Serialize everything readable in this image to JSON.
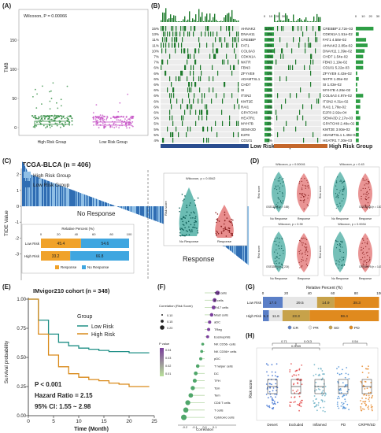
{
  "panels": {
    "A": {
      "label": "(A)",
      "annotation": "Wilcoxon, P = 0.00066",
      "ylabel": "TMB",
      "yticks": [
        "0",
        "50",
        "100",
        "150"
      ],
      "groups": [
        "High Risk Group",
        "Low Risk Group"
      ],
      "colors": {
        "high": "#2e8b3e",
        "low": "#c44fc4"
      }
    },
    "B": {
      "label": "(B)",
      "left_title": "Low Risk Group",
      "right_title": "High Risk Group",
      "left_genes": [
        {
          "pct": "15%",
          "gene": "AHNAK2"
        },
        {
          "pct": "13%",
          "gene": "DNAH11"
        },
        {
          "pct": "11%",
          "gene": "CREBBP"
        },
        {
          "pct": "11%",
          "gene": "FAT1"
        },
        {
          "pct": "10%",
          "gene": "COL6A3"
        },
        {
          "pct": "7%",
          "gene": "CDKN1A"
        },
        {
          "pct": "7%",
          "gene": "NKTR"
        },
        {
          "pct": "6%",
          "gene": "FBN3"
        },
        {
          "pct": "6%",
          "gene": "ZFYVE9"
        },
        {
          "pct": "6%",
          "gene": "ADAMTSL1"
        },
        {
          "pct": "6%",
          "gene": "CHD7"
        },
        {
          "pct": "6%",
          "gene": "SI"
        },
        {
          "pct": "6%",
          "gene": "ITSN2"
        },
        {
          "pct": "6%",
          "gene": "KMT2E"
        },
        {
          "pct": "6%",
          "gene": "RAI1"
        },
        {
          "pct": "6%",
          "gene": "GPATCH8"
        },
        {
          "pct": "5%",
          "gene": "HEATR1"
        },
        {
          "pct": "5%",
          "gene": "MYH7B"
        },
        {
          "pct": "5%",
          "gene": "SEMA3D"
        },
        {
          "pct": "5%",
          "gene": "E2F8"
        },
        {
          "pct": "4%",
          "gene": "CD101"
        }
      ],
      "right_genes": [
        {
          "pct": "12%",
          "gene": "CREBBP 2.72e-03"
        },
        {
          "pct": "2%",
          "gene": "CDKN1A 1.51e-02"
        },
        {
          "pct": "7%",
          "gene": "FAT1 4.58e-02"
        },
        {
          "pct": "8%",
          "gene": "AHNAK2 2.85e-02"
        },
        {
          "pct": "6%",
          "gene": "DNAH11 1.39e-02"
        },
        {
          "pct": "5%",
          "gene": "CHD7 1.54e-02"
        },
        {
          "pct": "5%",
          "gene": "FBN3 1.19e-02"
        },
        {
          "pct": "5%",
          "gene": "CD101 5.22e-03"
        },
        {
          "pct": "1%",
          "gene": "ZFYVE9 4.43e-02"
        },
        {
          "pct": "2%",
          "gene": "NKTR 1.05e-02"
        },
        {
          "pct": "1%",
          "gene": "SI 1.03e-02"
        },
        {
          "pct": "1%",
          "gene": "MYH7B 4.26e-02"
        },
        {
          "pct": "5%",
          "gene": "COL6A3 4.97e-02"
        },
        {
          "pct": "3%",
          "gene": "ITSN2 4.31e-02"
        },
        {
          "pct": "3%",
          "gene": "RAI1 1.78e-02"
        },
        {
          "pct": "2%",
          "gene": "E2F8 2.92e-04"
        },
        {
          "pct": "3%",
          "gene": "SEMA3D 2.17e-03"
        },
        {
          "pct": "2%",
          "gene": "GPATCH8 2.48e-02"
        },
        {
          "pct": "2%",
          "gene": "KMT2E 3.93e-02"
        },
        {
          "pct": "2%",
          "gene": "ADAMTSL1 1.49e-02"
        },
        {
          "pct": "2%",
          "gene": "HEATR1 7.30e-03"
        }
      ],
      "axis_ticks": [
        "0",
        "10",
        "20",
        "30"
      ]
    },
    "C": {
      "label": "(C)",
      "title": "TCGA-BLCA (n = 406)",
      "ylabel": "TIDE Value",
      "legend": [
        "High Risk Group",
        "Low Risk Group"
      ],
      "no_response": "No Response",
      "response": "Response",
      "inset_title": "Wilcoxon, p = 0.0042",
      "inset_ylabel": "Risk score",
      "inset_x": [
        "No Response",
        "Response"
      ],
      "bar_title": "Relative Percent (%)",
      "bar_ticks": [
        "0",
        "20",
        "40",
        "60",
        "80",
        "100"
      ],
      "bar_rows": [
        {
          "name": "Low Risk",
          "values": [
            "45.4",
            "54.6"
          ]
        },
        {
          "name": "High Risk",
          "values": [
            "33.2",
            "66.8"
          ]
        }
      ],
      "bar_legend": [
        "Response",
        "No Response"
      ],
      "yticks": [
        "2",
        "1",
        "0",
        "-1",
        "-2",
        "-3"
      ]
    },
    "D": {
      "label": "(D)",
      "subplots": [
        {
          "title": "Wilcoxon, p = 0.00041",
          "cohort": "GSE13507 (n = 165)"
        },
        {
          "title": "Wilcoxon, p = 0.43",
          "cohort": "GSE32548 (n = 130)"
        },
        {
          "title": "Wilcoxon, p = 0.39",
          "cohort": "GSE32894 (n = 224)"
        },
        {
          "title": "Wilcoxon, p = 0.0034",
          "cohort": "GSE48075 (n = 142)"
        }
      ],
      "xcats": [
        "No Response",
        "Response"
      ],
      "ylabel": "Risk score"
    },
    "E": {
      "label": "(E)",
      "title": "IMvigor210 cohort (n = 348)",
      "ylabel": "Survival probability",
      "xlabel": "Time (Month)",
      "xticks": [
        "0",
        "5",
        "10",
        "15",
        "20",
        "25"
      ],
      "yticks": [
        "1.00",
        "0.75",
        "0.50",
        "0.25",
        "0.00"
      ],
      "legend_title": "Group",
      "legend": [
        "Low Risk",
        "High Risk"
      ],
      "pvalue": "P < 0.001",
      "hr": "Hazard Ratio = 2.15",
      "ci": "95% CI: 1.55 ~ 2.98"
    },
    "F": {
      "label": "(F)",
      "cells": [
        "Th1 cells",
        "B cells",
        "Th17 cells",
        "Mast cells",
        "aDC",
        "TReg",
        "Eosinophils",
        "NK CD56- cells",
        "NK CD56+ cells",
        "pDC",
        "T helper cells",
        "DC",
        "TFH",
        "Tcm",
        "Tem",
        "CD8 T cells",
        "T cells",
        "Cytotoxic cells"
      ],
      "legend_corr": "Correlation (Risk Score)",
      "legend_sizes": [
        "0.10",
        "0.15",
        "0.20"
      ],
      "legend_p": "P value",
      "legend_p_ticks": [
        "0.04",
        "0.03",
        "0.02",
        "0.01"
      ],
      "xlabel": "Correlation",
      "xticks": [
        "-0.2",
        "-0.1",
        "0.0",
        "0.1"
      ]
    },
    "G": {
      "label": "(G)",
      "title": "Relative Percent (%)",
      "ticks": [
        "0",
        "20",
        "40",
        "60",
        "80",
        "100"
      ],
      "rows": [
        {
          "name": "Low Risk",
          "values": [
            "17.0",
            "29.5",
            "14.9",
            "38.3"
          ]
        },
        {
          "name": "High Risk",
          "values": [
            "5.2",
            "11.6",
            "23.3",
            "59.4"
          ]
        }
      ],
      "legend": [
        "CR",
        "PR",
        "SD",
        "PD"
      ]
    },
    "H": {
      "label": "(H)",
      "ylabel": "Risk score",
      "cats": [
        "Desert",
        "Excluded",
        "Inflamed",
        "PD",
        "CR/PR/SD"
      ],
      "pvals": [
        "0.71",
        "0.0059",
        "0.013",
        "0.54"
      ]
    }
  },
  "chart_data": [
    {
      "type": "bar",
      "title": "",
      "categories": [
        "High Risk Group",
        "Low Risk Group"
      ],
      "ylabel": "TMB",
      "note": "Wilcoxon, P = 0.00066",
      "ylim": [
        0,
        150
      ]
    },
    {
      "type": "bar",
      "title": "TCGA-BLCA (n = 406)",
      "ylabel": "TIDE Value",
      "series": [
        {
          "name": "High Risk Group"
        },
        {
          "name": "Low Risk Group"
        }
      ]
    },
    {
      "type": "bar",
      "title": "Relative Percent (%)",
      "categories": [
        "Low Risk",
        "High Risk"
      ],
      "series": [
        {
          "name": "Response",
          "values": [
            45.4,
            33.2
          ]
        },
        {
          "name": "No Response",
          "values": [
            54.6,
            66.8
          ]
        }
      ]
    },
    {
      "type": "line",
      "title": "IMvigor210 cohort (n = 348)",
      "xlabel": "Time (Month)",
      "ylabel": "Survival probability",
      "series": [
        {
          "name": "Low Risk",
          "x": [
            0,
            2,
            4,
            6,
            8,
            10,
            12,
            14,
            16,
            18,
            20,
            22,
            24
          ],
          "values": [
            1.0,
            0.82,
            0.7,
            0.63,
            0.6,
            0.58,
            0.57,
            0.56,
            0.55,
            0.55,
            0.54,
            0.54,
            0.54
          ]
        },
        {
          "name": "High Risk",
          "x": [
            0,
            2,
            4,
            6,
            8,
            10,
            12,
            14,
            16,
            18,
            20,
            22,
            24
          ],
          "values": [
            1.0,
            0.7,
            0.52,
            0.42,
            0.36,
            0.33,
            0.31,
            0.3,
            0.28,
            0.27,
            0.25,
            0.25,
            0.25
          ]
        }
      ]
    },
    {
      "type": "bar",
      "title": "Relative Percent (%)",
      "categories": [
        "Low Risk",
        "High Risk"
      ],
      "series": [
        {
          "name": "CR",
          "values": [
            17.0,
            5.2
          ]
        },
        {
          "name": "PR",
          "values": [
            29.5,
            11.6
          ]
        },
        {
          "name": "SD",
          "values": [
            14.9,
            23.3
          ]
        },
        {
          "name": "PD",
          "values": [
            38.3,
            59.4
          ]
        }
      ]
    }
  ]
}
